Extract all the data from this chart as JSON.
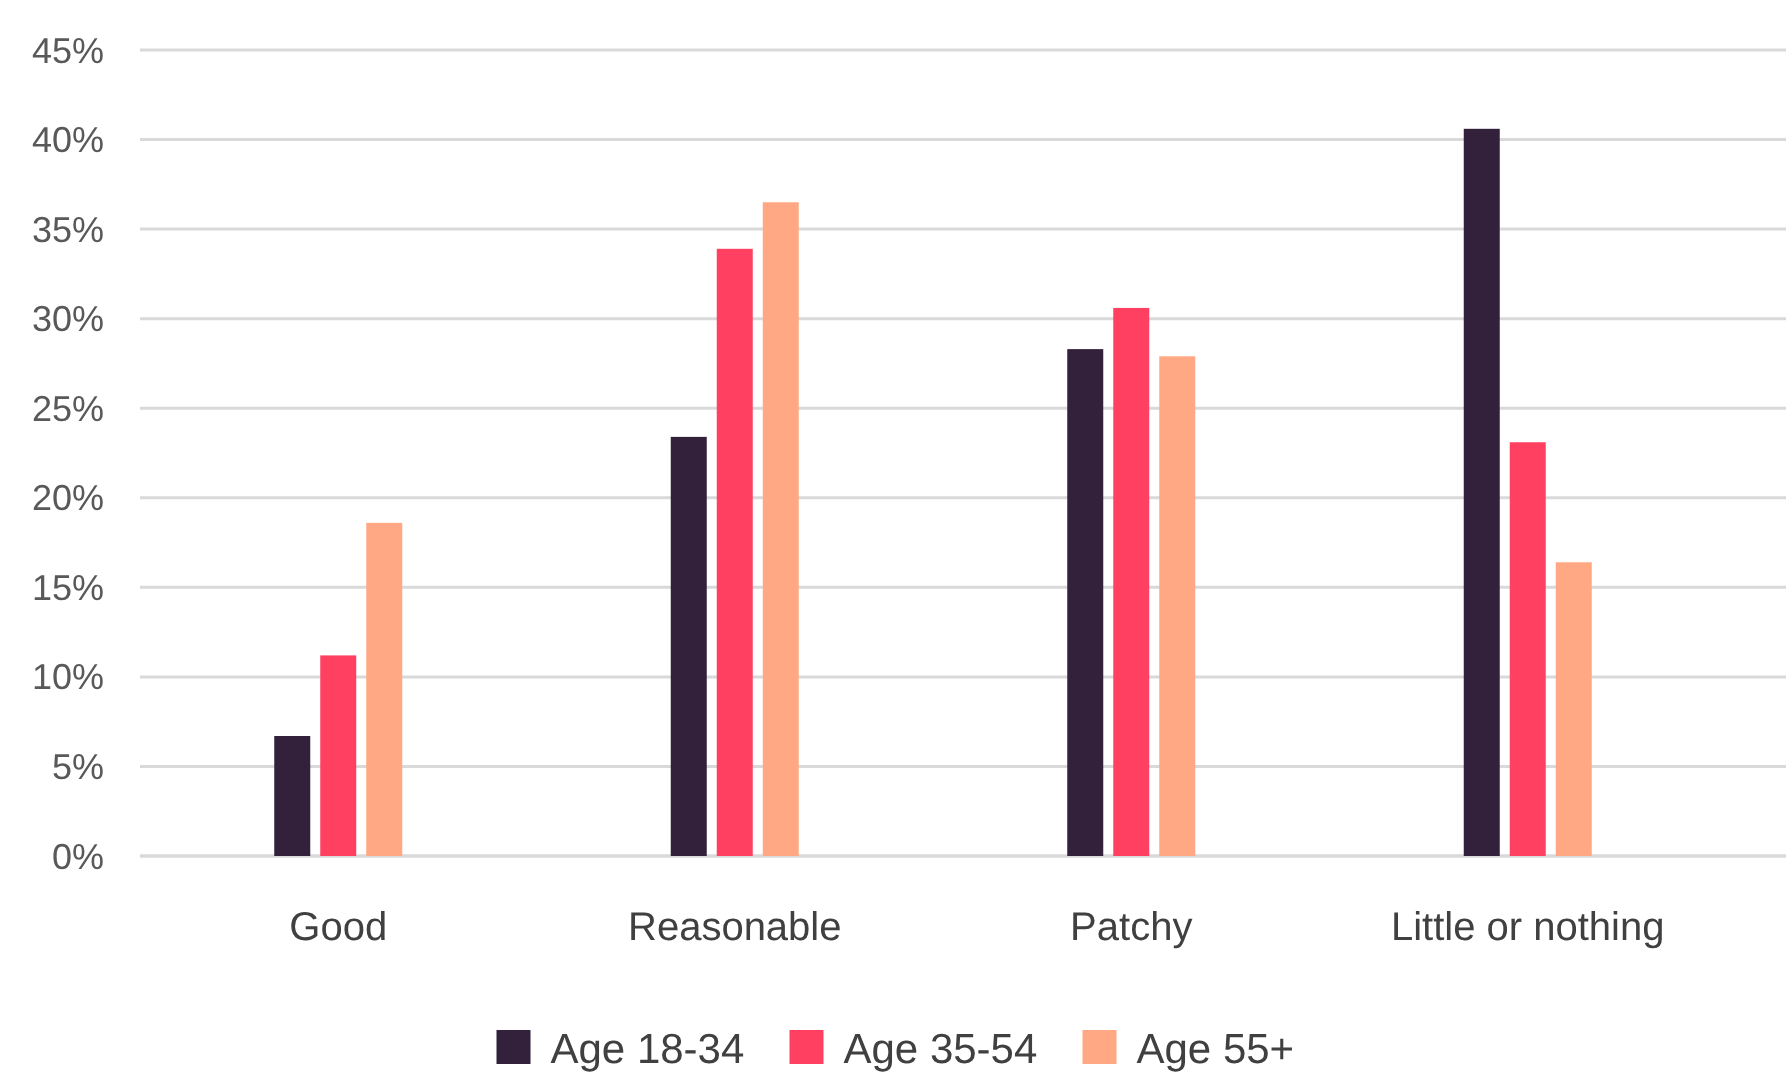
{
  "chart_data": {
    "type": "bar",
    "categories": [
      "Good",
      "Reasonable",
      "Patchy",
      "Little or nothing"
    ],
    "series": [
      {
        "name": "Age 18-34",
        "color": "#33203a",
        "values": [
          6.7,
          23.4,
          28.3,
          40.6
        ]
      },
      {
        "name": "Age 35-54",
        "color": "#ff4060",
        "values": [
          11.2,
          33.9,
          30.6,
          23.1
        ]
      },
      {
        "name": "Age 55+",
        "color": "#ffa883",
        "values": [
          18.6,
          36.5,
          27.9,
          16.4
        ]
      }
    ],
    "ylim": [
      0,
      45
    ],
    "yticks": [
      {
        "value": 0,
        "label": "0%"
      },
      {
        "value": 5,
        "label": "5%"
      },
      {
        "value": 10,
        "label": "10%"
      },
      {
        "value": 15,
        "label": "15%"
      },
      {
        "value": 20,
        "label": "20%"
      },
      {
        "value": 25,
        "label": "25%"
      },
      {
        "value": 30,
        "label": "30%"
      },
      {
        "value": 35,
        "label": "35%"
      },
      {
        "value": 40,
        "label": "40%"
      },
      {
        "value": 45,
        "label": "45%"
      }
    ],
    "grid": "y",
    "legend": "bottom"
  }
}
